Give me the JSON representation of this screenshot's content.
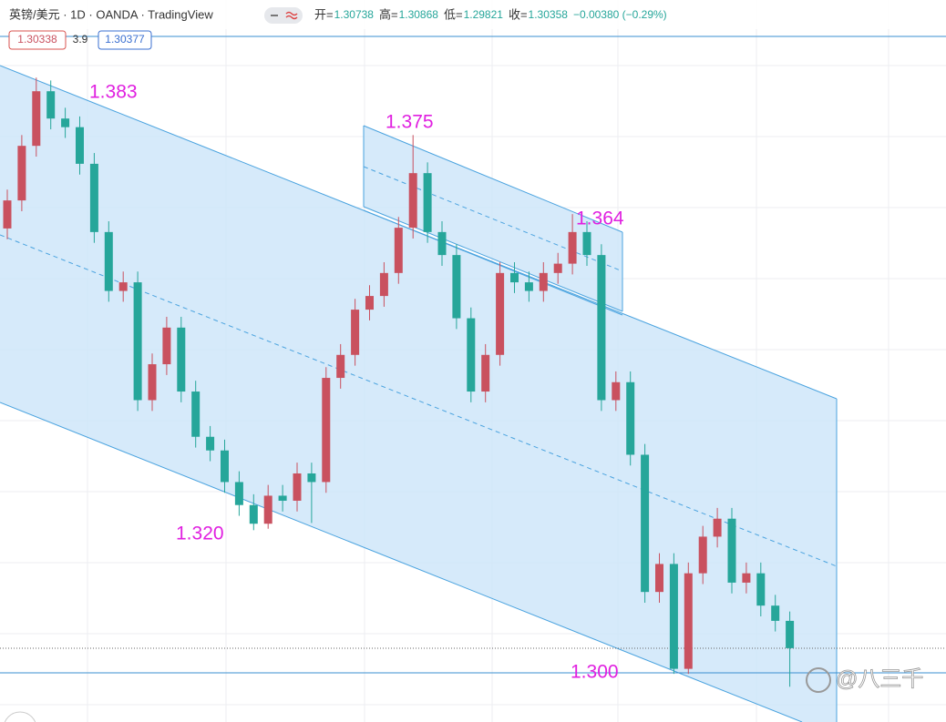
{
  "header": {
    "symbol": "英镑/美元 · 1D · OANDA · TradingView",
    "ohlc": [
      {
        "label": "开=",
        "value": "1.30738"
      },
      {
        "label": "高=",
        "value": "1.30868"
      },
      {
        "label": "低=",
        "value": "1.29821"
      },
      {
        "label": "收=",
        "value": "1.30358"
      }
    ],
    "change": "−0.00380 (−0.29%)",
    "badges": [
      "1.30338",
      "3.9",
      "1.30377"
    ]
  },
  "watermark": "@八三千",
  "chart_data": {
    "type": "candlestick",
    "ylim": [
      1.2933,
      1.3938
    ],
    "up_color": "#c9515f",
    "down_color": "#26a69a",
    "annotations": [
      "1.383",
      "1.375",
      "1.364",
      "1.320",
      "1.300"
    ],
    "open": [
      1.362,
      1.3659,
      1.3735,
      1.3811,
      1.3773,
      1.3761,
      1.371,
      1.3615,
      1.3533,
      1.3545,
      1.3381,
      1.3431,
      1.3482,
      1.3393,
      1.333,
      1.3311,
      1.3267,
      1.3235,
      1.3209,
      1.3248,
      1.3241,
      1.3279,
      1.3267,
      1.3412,
      1.3444,
      1.3507,
      1.3526,
      1.3558,
      1.3621,
      1.3697,
      1.3615,
      1.3583,
      1.3495,
      1.3393,
      1.3444,
      1.3558,
      1.3545,
      1.3533,
      1.3558,
      1.3571,
      1.3615,
      1.3583,
      1.3381,
      1.3406,
      1.3305,
      1.3114,
      1.3153,
      1.3007,
      1.314,
      1.3191,
      1.3216,
      1.3127,
      1.314,
      1.3095,
      1.30738
    ],
    "high": [
      1.3674,
      1.375,
      1.383,
      1.3826,
      1.3788,
      1.3776,
      1.3725,
      1.363,
      1.356,
      1.356,
      1.3446,
      1.3497,
      1.3497,
      1.3408,
      1.3345,
      1.3326,
      1.3282,
      1.325,
      1.3263,
      1.3263,
      1.3294,
      1.3294,
      1.3427,
      1.3459,
      1.3522,
      1.3541,
      1.3573,
      1.3636,
      1.375,
      1.3712,
      1.363,
      1.3598,
      1.351,
      1.3459,
      1.3573,
      1.3573,
      1.356,
      1.3573,
      1.3586,
      1.364,
      1.363,
      1.3598,
      1.3421,
      1.3421,
      1.332,
      1.3168,
      1.3168,
      1.3155,
      1.3206,
      1.3231,
      1.3231,
      1.3155,
      1.3155,
      1.311,
      1.30868
    ],
    "low": [
      1.3605,
      1.3644,
      1.372,
      1.3758,
      1.3746,
      1.3695,
      1.36,
      1.3518,
      1.3518,
      1.3366,
      1.3366,
      1.3416,
      1.3378,
      1.3315,
      1.3296,
      1.3252,
      1.322,
      1.32,
      1.3202,
      1.3226,
      1.3226,
      1.321,
      1.3252,
      1.3397,
      1.3429,
      1.3492,
      1.3511,
      1.3543,
      1.3606,
      1.36,
      1.3568,
      1.348,
      1.3378,
      1.3378,
      1.3429,
      1.353,
      1.3518,
      1.3518,
      1.3543,
      1.3556,
      1.3568,
      1.3366,
      1.3366,
      1.329,
      1.3099,
      1.3099,
      1.3,
      1.3,
      1.3125,
      1.3176,
      1.3112,
      1.3112,
      1.308,
      1.3059,
      1.29821
    ],
    "close": [
      1.3659,
      1.3735,
      1.3811,
      1.3773,
      1.3761,
      1.371,
      1.3615,
      1.3533,
      1.3545,
      1.3381,
      1.3431,
      1.3482,
      1.3393,
      1.333,
      1.3311,
      1.3267,
      1.3235,
      1.3209,
      1.3248,
      1.3241,
      1.3279,
      1.3267,
      1.3412,
      1.3444,
      1.3507,
      1.3526,
      1.3558,
      1.3621,
      1.3697,
      1.3615,
      1.3583,
      1.3495,
      1.3393,
      1.3444,
      1.3558,
      1.3545,
      1.3533,
      1.3558,
      1.3571,
      1.3615,
      1.3583,
      1.3381,
      1.3406,
      1.3305,
      1.3114,
      1.3153,
      1.3007,
      1.314,
      1.3191,
      1.3216,
      1.3127,
      1.314,
      1.3095,
      1.30738,
      1.30358
    ]
  }
}
